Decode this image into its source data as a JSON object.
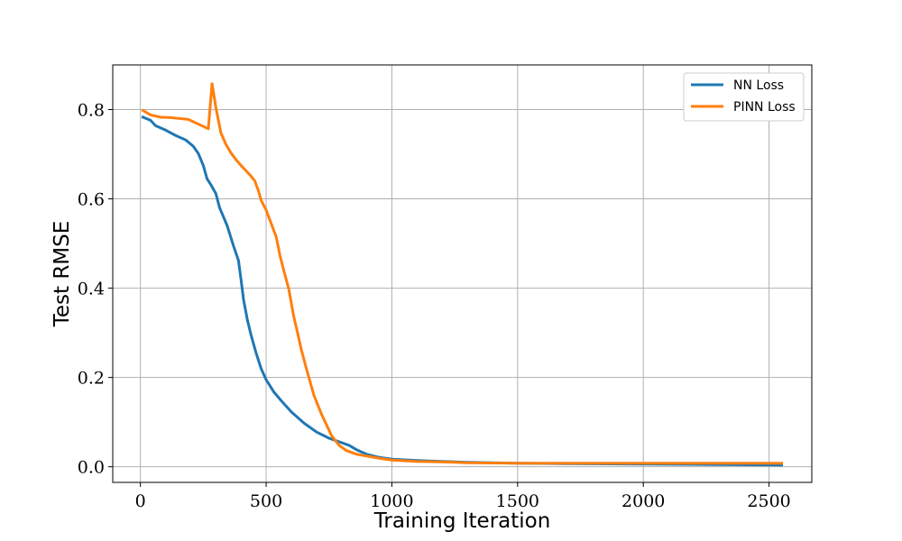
{
  "chart_data": {
    "type": "line",
    "title": "",
    "xlabel": "Training Iteration",
    "ylabel": "Test RMSE",
    "xlim": [
      -110,
      2670
    ],
    "ylim": [
      -0.035,
      0.9
    ],
    "xticks": [
      0,
      500,
      1000,
      1500,
      2000,
      2500
    ],
    "xtick_labels": [
      "0",
      "500",
      "1000",
      "1500",
      "2000",
      "2500"
    ],
    "yticks": [
      0.0,
      0.2,
      0.4,
      0.6,
      0.8
    ],
    "ytick_labels": [
      "0.0",
      "0.2",
      "0.4",
      "0.6",
      "0.8"
    ],
    "grid": true,
    "legend_position": "top-right",
    "series": [
      {
        "name": "NN Loss",
        "color": "#1f77b4",
        "x": [
          10,
          40,
          60,
          100,
          140,
          180,
          210,
          230,
          250,
          265,
          280,
          300,
          315,
          345,
          370,
          390,
          400,
          410,
          425,
          440,
          460,
          480,
          500,
          530,
          560,
          600,
          650,
          700,
          750,
          800,
          830,
          860,
          900,
          950,
          1000,
          1100,
          1200,
          1300,
          1500,
          1700,
          2000,
          2300,
          2550
        ],
        "y": [
          0.783,
          0.776,
          0.764,
          0.754,
          0.742,
          0.732,
          0.718,
          0.702,
          0.675,
          0.645,
          0.632,
          0.612,
          0.58,
          0.54,
          0.495,
          0.462,
          0.42,
          0.375,
          0.33,
          0.295,
          0.255,
          0.22,
          0.195,
          0.168,
          0.148,
          0.123,
          0.098,
          0.078,
          0.064,
          0.054,
          0.048,
          0.038,
          0.028,
          0.021,
          0.017,
          0.014,
          0.012,
          0.01,
          0.008,
          0.007,
          0.006,
          0.005,
          0.004
        ]
      },
      {
        "name": "PINN Loss",
        "color": "#ff7f0e",
        "x": [
          10,
          40,
          80,
          120,
          190,
          270,
          285,
          300,
          320,
          340,
          360,
          380,
          400,
          420,
          440,
          455,
          470,
          480,
          500,
          520,
          540,
          555,
          570,
          590,
          610,
          625,
          640,
          660,
          690,
          720,
          760,
          790,
          820,
          860,
          900,
          950,
          1000,
          1100,
          1200,
          1300,
          1500,
          1700,
          2000,
          2300,
          2550
        ],
        "y": [
          0.798,
          0.788,
          0.783,
          0.782,
          0.778,
          0.757,
          0.858,
          0.805,
          0.748,
          0.722,
          0.703,
          0.688,
          0.675,
          0.663,
          0.651,
          0.64,
          0.617,
          0.597,
          0.575,
          0.545,
          0.515,
          0.473,
          0.44,
          0.398,
          0.336,
          0.3,
          0.262,
          0.22,
          0.16,
          0.118,
          0.07,
          0.048,
          0.036,
          0.028,
          0.024,
          0.019,
          0.015,
          0.012,
          0.011,
          0.009,
          0.008,
          0.008,
          0.008,
          0.008,
          0.008
        ]
      }
    ]
  }
}
